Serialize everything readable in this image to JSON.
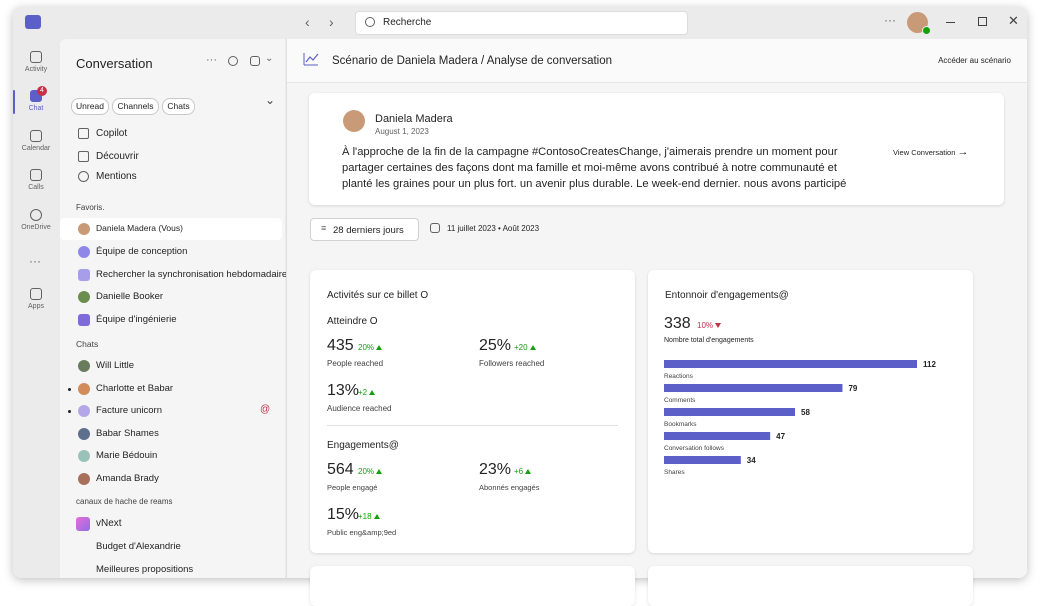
{
  "app_bar": {
    "items": [
      {
        "label": "Activity"
      },
      {
        "label": "Chat",
        "badge": "4"
      },
      {
        "label": "Calendar"
      },
      {
        "label": "Calls"
      },
      {
        "label": "OneDrive"
      },
      {
        "label": "Apps"
      }
    ]
  },
  "search": {
    "placeholder": "Recherche"
  },
  "sidebar": {
    "title": "Conversation",
    "filters": [
      "Unread",
      "Channels",
      "Chats"
    ],
    "quick": [
      "Copilot",
      "Découvrir",
      "Mentions"
    ],
    "favorites_label": "Favoris.",
    "favorites": [
      "Daniela Madera (Vous)",
      "Équipe de conception",
      "Rechercher la synchronisation hebdomadaire",
      "Danielle Booker",
      "Équipe d'ingénierie"
    ],
    "chats_label": "Chats",
    "chats": [
      "Will Little",
      "Charlotte et Babar",
      "Facture unicorn",
      "Babar Shames",
      "Marie Bédouin",
      "Amanda Brady"
    ],
    "mention_mark": "@",
    "teams_label": "canaux de hache de reams",
    "teams": [
      "vNext",
      "Budget d'Alexandrie",
      "Meilleures propositions"
    ]
  },
  "header": {
    "breadcrumb": "Scénario de Daniela Madera / Analyse de conversation",
    "action": "Accéder au scénario"
  },
  "post": {
    "author": "Daniela Madera",
    "date": "August 1, 2023",
    "text": "À l'approche de la fin de la campagne #ContosoCreatesChange, j'aimerais prendre un moment pour partager certaines des façons dont ma famille et moi-même avons contribué à notre communauté et planté les graines pour un plus fort. un avenir plus durable. Le week-end dernier. nous avons participé aux",
    "link": "View Conversation"
  },
  "filters": {
    "range": "28 derniers jours",
    "dates": "11 juillet 2023 • Août 2023"
  },
  "activity_card": {
    "title": "Activités sur ce billet O",
    "reach": {
      "label": "Atteindre O",
      "metrics": [
        {
          "value": "435",
          "change": "20%",
          "label": "People reached"
        },
        {
          "value": "25%",
          "change": "+20",
          "label": "Followers reached"
        },
        {
          "value": "13%",
          "change": "+2",
          "label": "Audience reached"
        }
      ]
    },
    "engagements": {
      "label": "Engagements@",
      "metrics": [
        {
          "value": "564",
          "change": "20%",
          "label": "People engagé"
        },
        {
          "value": "23%",
          "change": "+6",
          "label": "Abonnés engagés"
        },
        {
          "value": "15%",
          "change": "+18",
          "label": "Public eng&amp;9ed"
        }
      ]
    }
  },
  "engagement_card": {
    "total": "338",
    "change": "10%",
    "total_label": "Nombre total d'engagements"
  },
  "chart_data": {
    "type": "bar",
    "orientation": "horizontal",
    "title": "Entonnoir d'engagements@",
    "categories": [
      "Reactions",
      "Comments",
      "Bookmarks",
      "Conversation follows",
      "Shares"
    ],
    "values": [
      112,
      79,
      58,
      47,
      34
    ],
    "color": "#5b5fc7"
  }
}
